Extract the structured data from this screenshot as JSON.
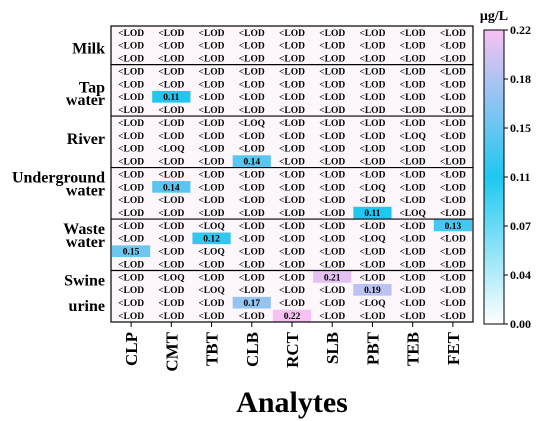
{
  "chart_data": {
    "type": "heatmap",
    "xlabel": "Analytes",
    "columns": [
      "CLP",
      "CMT",
      "TBT",
      "CLB",
      "RCT",
      "SLB",
      "PBT",
      "TEB",
      "FET"
    ],
    "groups": [
      {
        "label_lines": [
          "Milk"
        ],
        "rows": 3,
        "label_rows": [
          1
        ]
      },
      {
        "label_lines": [
          "Tap",
          "water"
        ],
        "rows": 4,
        "label_rows": [
          1,
          2
        ]
      },
      {
        "label_lines": [
          "River"
        ],
        "rows": 4,
        "label_rows": [
          1
        ]
      },
      {
        "label_lines": [
          "Underground",
          "water"
        ],
        "rows": 4,
        "label_rows": [
          0,
          1
        ]
      },
      {
        "label_lines": [
          "Waste",
          "water"
        ],
        "rows": 4,
        "label_rows": [
          0,
          1
        ]
      },
      {
        "label_lines": [
          "Swine",
          "urine"
        ],
        "rows": 4,
        "label_rows": [
          0,
          2
        ]
      }
    ],
    "cells": [
      [
        "<LOD",
        "<LOD",
        "<LOD",
        "<LOD",
        "<LOD",
        "<LOD",
        "<LOD",
        "<LOD",
        "<LOD"
      ],
      [
        "<LOD",
        "<LOD",
        "<LOD",
        "<LOD",
        "<LOD",
        "<LOD",
        "<LOD",
        "<LOD",
        "<LOD"
      ],
      [
        "<LOD",
        "<LOD",
        "<LOD",
        "<LOD",
        "<LOD",
        "<LOD",
        "<LOD",
        "<LOD",
        "<LOD"
      ],
      [
        "<LOD",
        "<LOD",
        "<LOD",
        "<LOD",
        "<LOD",
        "<LOD",
        "<LOD",
        "<LOD",
        "<LOD"
      ],
      [
        "<LOD",
        "<LOD",
        "<LOD",
        "<LOD",
        "<LOD",
        "<LOD",
        "<LOD",
        "<LOD",
        "<LOD"
      ],
      [
        "<LOD",
        "0.11",
        "<LOD",
        "<LOD",
        "<LOD",
        "<LOD",
        "<LOD",
        "<LOD",
        "<LOD"
      ],
      [
        "<LOD",
        "<LOD",
        "<LOD",
        "<LOD",
        "<LOD",
        "<LOD",
        "<LOD",
        "<LOD",
        "<LOD"
      ],
      [
        "<LOD",
        "<LOD",
        "<LOD",
        "<LOQ",
        "<LOD",
        "<LOD",
        "<LOD",
        "<LOD",
        "<LOD"
      ],
      [
        "<LOD",
        "<LOD",
        "<LOD",
        "<LOD",
        "<LOD",
        "<LOD",
        "<LOD",
        "<LOQ",
        "<LOD"
      ],
      [
        "<LOD",
        "<LOQ",
        "<LOD",
        "<LOD",
        "<LOD",
        "<LOD",
        "<LOD",
        "<LOD",
        "<LOD"
      ],
      [
        "<LOD",
        "<LOD",
        "<LOD",
        "0.14",
        "<LOD",
        "<LOD",
        "<LOD",
        "<LOD",
        "<LOD"
      ],
      [
        "<LOD",
        "<LOD",
        "<LOD",
        "<LOD",
        "<LOD",
        "<LOD",
        "<LOD",
        "<LOD",
        "<LOD"
      ],
      [
        "<LOD",
        "0.14",
        "<LOD",
        "<LOD",
        "<LOD",
        "<LOD",
        "<LOQ",
        "<LOD",
        "<LOD"
      ],
      [
        "<LOD",
        "<LOD",
        "<LOD",
        "<LOD",
        "<LOD",
        "<LOD",
        "<LOD",
        "<LOD",
        "<LOD"
      ],
      [
        "<LOD",
        "<LOD",
        "<LOD",
        "<LOD",
        "<LOD",
        "<LOD",
        "0.11",
        "<LOQ",
        "<LOD"
      ],
      [
        "<LOD",
        "<LOD",
        "<LOQ",
        "<LOD",
        "<LOD",
        "<LOD",
        "<LOD",
        "<LOD",
        "0.13"
      ],
      [
        "<LOD",
        "<LOD",
        "0.12",
        "<LOD",
        "<LOD",
        "<LOD",
        "<LOQ",
        "<LOD",
        "<LOD"
      ],
      [
        "0.15",
        "<LOD",
        "<LOQ",
        "<LOD",
        "<LOD",
        "<LOD",
        "<LOD",
        "<LOD",
        "<LOD"
      ],
      [
        "<LOD",
        "<LOD",
        "<LOD",
        "<LOD",
        "<LOD",
        "<LOD",
        "<LOD",
        "<LOD",
        "<LOD"
      ],
      [
        "<LOD",
        "<LOQ",
        "<LOD",
        "<LOD",
        "<LOD",
        "0.21",
        "<LOD",
        "<LOD",
        "<LOD"
      ],
      [
        "<LOD",
        "<LOD",
        "<LOQ",
        "<LOD",
        "<LOD",
        "<LOD",
        "0.19",
        "<LOD",
        "<LOD"
      ],
      [
        "<LOD",
        "<LOD",
        "<LOD",
        "0.17",
        "<LOD",
        "<LOD",
        "<LOQ",
        "<LOD",
        "<LOD"
      ],
      [
        "<LOD",
        "<LOD",
        "<LOD",
        "<LOD",
        "0.22",
        "<LOD",
        "<LOD",
        "<LOD",
        "<LOD"
      ]
    ],
    "colorbar": {
      "title": "μg/L",
      "range": [
        0,
        0.22
      ],
      "ticks": [
        "0.22",
        "0.18",
        "0.15",
        "0.11",
        "0.07",
        "0.04",
        "0.00"
      ],
      "colors": {
        "low": "#ffffff",
        "mid": "#1ec8f0",
        "high": "#f7c1f3"
      }
    }
  }
}
